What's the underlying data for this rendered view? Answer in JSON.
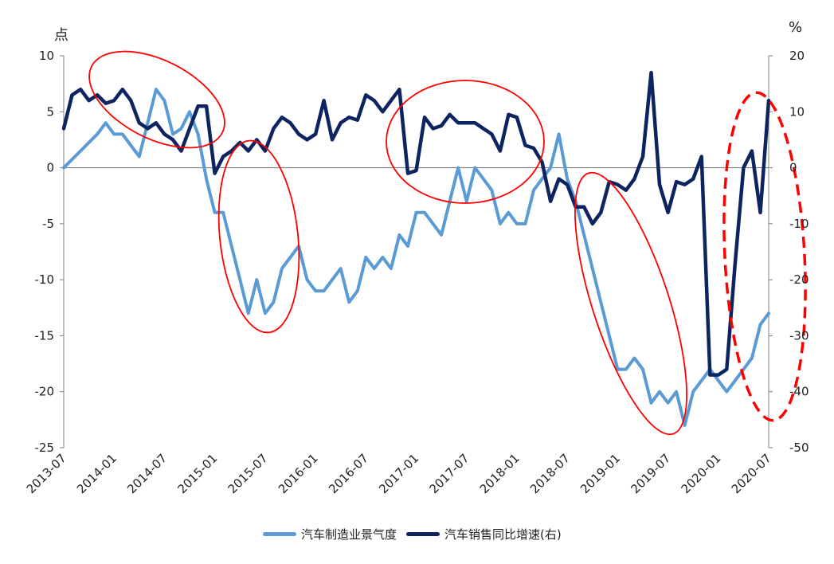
{
  "chart_data": {
    "type": "line",
    "left_unit": "点",
    "right_unit": "%",
    "ylim_left": [
      -25,
      10
    ],
    "ylim_right": [
      -50,
      20
    ],
    "yticks_left": [
      "10",
      "5",
      "0",
      "-5",
      "-10",
      "-15",
      "-20",
      "-25"
    ],
    "yticks_right": [
      "20",
      "10",
      "0",
      "-10",
      "-20",
      "-30",
      "-40",
      "-50"
    ],
    "xticks": [
      "2013-07",
      "2014-01",
      "2014-07",
      "2015-01",
      "2015-07",
      "2016-01",
      "2016-07",
      "2017-01",
      "2017-07",
      "2018-01",
      "2018-07",
      "2019-01",
      "2019-07",
      "2020-01",
      "2020-07"
    ],
    "series": [
      {
        "name": "汽车制造业景气度",
        "axis": "left",
        "color": "#5b9bd5",
        "values": [
          [
            0,
            0
          ],
          [
            2,
            1.5
          ],
          [
            4,
            3
          ],
          [
            5,
            4
          ],
          [
            6,
            3
          ],
          [
            7,
            3
          ],
          [
            8,
            2
          ],
          [
            9,
            1
          ],
          [
            10,
            4
          ],
          [
            11,
            7
          ],
          [
            12,
            6
          ],
          [
            13,
            3
          ],
          [
            14,
            3.5
          ],
          [
            15,
            5
          ],
          [
            16,
            3
          ],
          [
            17,
            -1
          ],
          [
            18,
            -4
          ],
          [
            19,
            -4
          ],
          [
            20,
            -7
          ],
          [
            21,
            -10
          ],
          [
            22,
            -13
          ],
          [
            23,
            -10
          ],
          [
            24,
            -13
          ],
          [
            25,
            -12
          ],
          [
            26,
            -9
          ],
          [
            27,
            -8
          ],
          [
            28,
            -7
          ],
          [
            29,
            -10
          ],
          [
            30,
            -11
          ],
          [
            31,
            -11
          ],
          [
            32,
            -10
          ],
          [
            33,
            -9
          ],
          [
            34,
            -12
          ],
          [
            35,
            -11
          ],
          [
            36,
            -8
          ],
          [
            37,
            -9
          ],
          [
            38,
            -8
          ],
          [
            39,
            -9
          ],
          [
            40,
            -6
          ],
          [
            41,
            -7
          ],
          [
            42,
            -4
          ],
          [
            43,
            -4
          ],
          [
            44,
            -5
          ],
          [
            45,
            -6
          ],
          [
            46,
            -3
          ],
          [
            47,
            0
          ],
          [
            48,
            -3
          ],
          [
            49,
            0
          ],
          [
            50,
            -1
          ],
          [
            51,
            -2
          ],
          [
            52,
            -5
          ],
          [
            53,
            -4
          ],
          [
            54,
            -5
          ],
          [
            55,
            -5
          ],
          [
            56,
            -2
          ],
          [
            57,
            -1
          ],
          [
            58,
            0
          ],
          [
            59,
            3
          ],
          [
            60,
            -1
          ],
          [
            61,
            -3
          ],
          [
            62,
            -6
          ],
          [
            63,
            -9
          ],
          [
            64,
            -12
          ],
          [
            65,
            -15
          ],
          [
            66,
            -18
          ],
          [
            67,
            -18
          ],
          [
            68,
            -17
          ],
          [
            69,
            -18
          ],
          [
            70,
            -21
          ],
          [
            71,
            -20
          ],
          [
            72,
            -21
          ],
          [
            73,
            -20
          ],
          [
            74,
            -23
          ],
          [
            75,
            -20
          ],
          [
            76,
            -19
          ],
          [
            77,
            -18
          ],
          [
            78,
            -19
          ],
          [
            79,
            -20
          ],
          [
            80,
            -19
          ],
          [
            81,
            -18
          ],
          [
            82,
            -17
          ],
          [
            83,
            -14
          ],
          [
            84,
            -13
          ]
        ]
      },
      {
        "name": "汽车销售同比增速(右)",
        "axis": "right",
        "color": "#0d2461",
        "values": [
          [
            0,
            7
          ],
          [
            1,
            13
          ],
          [
            2,
            14
          ],
          [
            3,
            12
          ],
          [
            4,
            13
          ],
          [
            5,
            11.5
          ],
          [
            6,
            12
          ],
          [
            7,
            14
          ],
          [
            8,
            12
          ],
          [
            9,
            8
          ],
          [
            10,
            7
          ],
          [
            11,
            8
          ],
          [
            12,
            6
          ],
          [
            13,
            5
          ],
          [
            14,
            3
          ],
          [
            15,
            7
          ],
          [
            16,
            11
          ],
          [
            17,
            11
          ],
          [
            18,
            -1
          ],
          [
            19,
            2
          ],
          [
            20,
            3
          ],
          [
            21,
            4.5
          ],
          [
            22,
            3
          ],
          [
            23,
            5
          ],
          [
            24,
            3
          ],
          [
            25,
            7
          ],
          [
            26,
            9
          ],
          [
            27,
            8
          ],
          [
            28,
            6
          ],
          [
            29,
            5
          ],
          [
            30,
            6
          ],
          [
            31,
            12
          ],
          [
            32,
            5
          ],
          [
            33,
            8
          ],
          [
            34,
            9
          ],
          [
            35,
            8.5
          ],
          [
            36,
            13
          ],
          [
            37,
            12
          ],
          [
            38,
            10
          ],
          [
            39,
            12
          ],
          [
            40,
            14
          ],
          [
            41,
            -1
          ],
          [
            42,
            -0.5
          ],
          [
            43,
            9
          ],
          [
            44,
            7
          ],
          [
            45,
            7.5
          ],
          [
            46,
            9.5
          ],
          [
            47,
            8
          ],
          [
            48,
            8
          ],
          [
            49,
            8
          ],
          [
            50,
            7
          ],
          [
            51,
            6
          ],
          [
            52,
            3
          ],
          [
            53,
            9.5
          ],
          [
            54,
            9
          ],
          [
            55,
            4
          ],
          [
            56,
            3.5
          ],
          [
            57,
            1
          ],
          [
            58,
            -6
          ],
          [
            59,
            -2
          ],
          [
            60,
            -3
          ],
          [
            61,
            -7
          ],
          [
            62,
            -7
          ],
          [
            63,
            -10
          ],
          [
            64,
            -8
          ],
          [
            65,
            -2.5
          ],
          [
            66,
            -3
          ],
          [
            67,
            -4
          ],
          [
            68,
            -2
          ],
          [
            69,
            2
          ],
          [
            70,
            17
          ],
          [
            71,
            -3
          ],
          [
            72,
            -8
          ],
          [
            73,
            -2.5
          ],
          [
            74,
            -3
          ],
          [
            75,
            -2
          ],
          [
            76,
            2
          ],
          [
            77,
            -37
          ],
          [
            78,
            -37
          ],
          [
            79,
            -36
          ],
          [
            80,
            -17
          ],
          [
            81,
            0
          ],
          [
            82,
            3
          ],
          [
            83,
            -8
          ],
          [
            84,
            12
          ]
        ]
      }
    ],
    "annotations": {
      "ellipses_solid_red": 5,
      "ellipse_dashed_red": 1,
      "zero_line": true
    }
  }
}
